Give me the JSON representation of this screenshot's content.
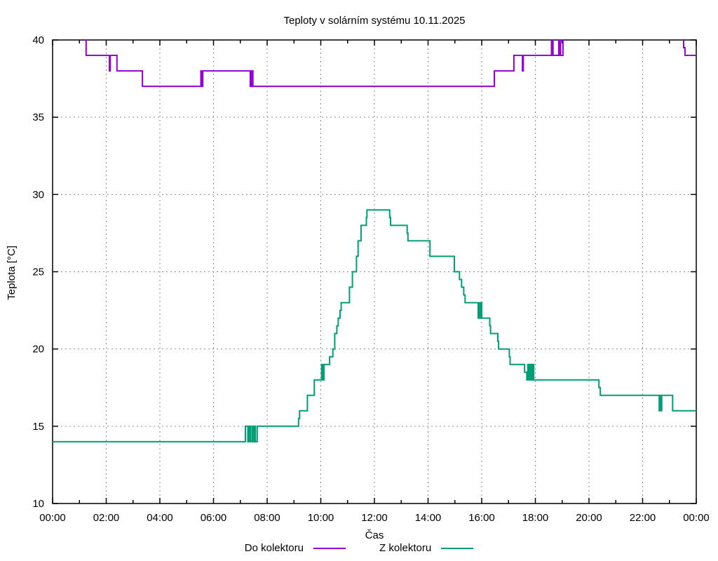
{
  "chart_data": {
    "type": "line",
    "title": "Teploty v solárním systému 10.11.2025",
    "xlabel": "Čas",
    "ylabel": "Teplota [°C]",
    "x_unit": "hours",
    "xlim": [
      0,
      24
    ],
    "ylim": [
      10,
      40
    ],
    "x_major_tick_hours": [
      0,
      2,
      4,
      6,
      8,
      10,
      12,
      14,
      16,
      18,
      20,
      22,
      24
    ],
    "x_major_tick_labels": [
      "00:00",
      "02:00",
      "04:00",
      "06:00",
      "08:00",
      "10:00",
      "12:00",
      "14:00",
      "16:00",
      "18:00",
      "20:00",
      "22:00",
      "00:00"
    ],
    "x_minor_tick_hours": [
      1,
      3,
      5,
      7,
      9,
      11,
      13,
      15,
      17,
      19,
      21,
      23
    ],
    "y_tick_values": [
      10,
      15,
      20,
      25,
      30,
      35,
      40
    ],
    "grid": "dashed-gray",
    "legend_position": "bottom-center",
    "clipping_note": "values of 40.6 represent off-scale readings above 40 that are clipped at the plot top border",
    "series": [
      {
        "name": "Do kolektoru",
        "color": "#9400d3",
        "style": "steps",
        "points": [
          [
            0,
            40.6
          ],
          [
            1.13,
            40
          ],
          [
            1.25,
            39
          ],
          [
            2.12,
            38
          ],
          [
            2.15,
            39
          ],
          [
            2.4,
            38
          ],
          [
            3.35,
            37
          ],
          [
            5.53,
            38
          ],
          [
            5.56,
            37
          ],
          [
            5.6,
            38
          ],
          [
            7.37,
            37
          ],
          [
            7.39,
            38
          ],
          [
            7.41,
            37
          ],
          [
            7.44,
            38
          ],
          [
            7.47,
            37
          ],
          [
            16.47,
            38
          ],
          [
            17.2,
            39
          ],
          [
            17.52,
            38
          ],
          [
            17.55,
            39
          ],
          [
            18.6,
            40
          ],
          [
            18.62,
            39
          ],
          [
            18.64,
            40
          ],
          [
            18.66,
            39
          ],
          [
            18.87,
            40
          ],
          [
            18.89,
            39
          ],
          [
            18.92,
            40
          ],
          [
            18.94,
            39
          ],
          [
            19.03,
            40
          ],
          [
            19.1,
            40.6
          ],
          [
            23.53,
            39.5
          ],
          [
            23.58,
            39
          ],
          [
            24,
            39
          ]
        ]
      },
      {
        "name": "Z kolektoru",
        "color": "#009e73",
        "style": "steps",
        "points": [
          [
            0,
            14
          ],
          [
            7.19,
            15
          ],
          [
            7.28,
            14
          ],
          [
            7.31,
            15
          ],
          [
            7.33,
            14
          ],
          [
            7.36,
            15
          ],
          [
            7.39,
            14
          ],
          [
            7.45,
            15
          ],
          [
            7.5,
            14
          ],
          [
            7.52,
            15
          ],
          [
            7.56,
            14
          ],
          [
            7.63,
            15
          ],
          [
            9.17,
            15.5
          ],
          [
            9.21,
            16
          ],
          [
            9.5,
            17
          ],
          [
            9.76,
            18
          ],
          [
            10.03,
            19
          ],
          [
            10.05,
            18
          ],
          [
            10.08,
            19
          ],
          [
            10.1,
            18
          ],
          [
            10.12,
            19
          ],
          [
            10.33,
            19.5
          ],
          [
            10.45,
            20
          ],
          [
            10.52,
            21
          ],
          [
            10.6,
            21.5
          ],
          [
            10.65,
            22
          ],
          [
            10.72,
            22.5
          ],
          [
            10.76,
            23
          ],
          [
            11.07,
            24
          ],
          [
            11.18,
            25
          ],
          [
            11.33,
            26
          ],
          [
            11.39,
            27
          ],
          [
            11.5,
            28
          ],
          [
            11.7,
            28.5
          ],
          [
            11.72,
            29
          ],
          [
            12.57,
            28.5
          ],
          [
            12.6,
            28
          ],
          [
            13.22,
            27.5
          ],
          [
            13.25,
            27
          ],
          [
            14.07,
            26
          ],
          [
            14.98,
            25
          ],
          [
            15.17,
            24.5
          ],
          [
            15.25,
            24
          ],
          [
            15.33,
            23.5
          ],
          [
            15.38,
            23
          ],
          [
            15.87,
            22
          ],
          [
            15.9,
            23
          ],
          [
            15.93,
            22
          ],
          [
            15.96,
            23
          ],
          [
            16.0,
            22
          ],
          [
            16.3,
            21.5
          ],
          [
            16.33,
            21
          ],
          [
            16.6,
            20.5
          ],
          [
            16.63,
            20
          ],
          [
            17.03,
            19.5
          ],
          [
            17.06,
            19
          ],
          [
            17.6,
            18.5
          ],
          [
            17.68,
            18
          ],
          [
            17.72,
            19
          ],
          [
            17.74,
            18
          ],
          [
            17.78,
            19
          ],
          [
            17.8,
            18
          ],
          [
            17.85,
            19
          ],
          [
            17.87,
            18
          ],
          [
            17.92,
            19
          ],
          [
            17.94,
            18
          ],
          [
            20.37,
            17.5
          ],
          [
            20.42,
            17
          ],
          [
            22.62,
            16
          ],
          [
            22.64,
            17
          ],
          [
            22.68,
            16
          ],
          [
            22.71,
            17
          ],
          [
            23.12,
            16
          ],
          [
            24,
            16
          ]
        ]
      }
    ]
  }
}
